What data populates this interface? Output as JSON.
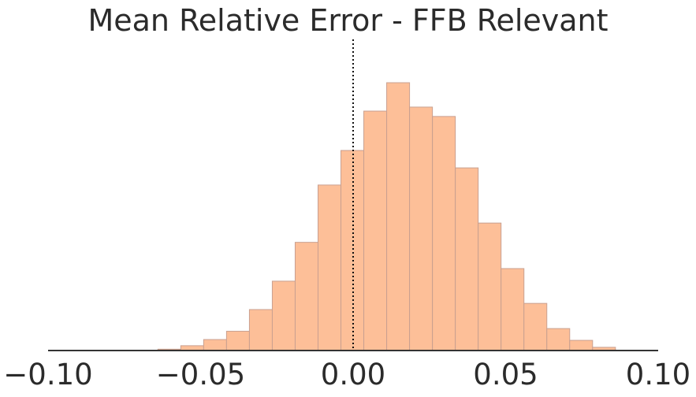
{
  "chart_data": {
    "type": "bar",
    "title": "Mean Relative Error - FFB Relevant",
    "xlabel": "",
    "ylabel": "",
    "xlim": [
      -0.1,
      0.1
    ],
    "ylim": [
      0,
      1
    ],
    "grid": false,
    "y_axis_visible": false,
    "bar_color": "#fdbf98",
    "bar_edge_color": "#c9a090",
    "reference_line": {
      "x": 0.0,
      "style": "dotted",
      "color": "#111111"
    },
    "x_ticks": [
      {
        "value": -0.1,
        "label": "−0.10"
      },
      {
        "value": -0.05,
        "label": "−0.05"
      },
      {
        "value": 0.0,
        "label": "0.00"
      },
      {
        "value": 0.05,
        "label": "0.05"
      },
      {
        "value": 0.1,
        "label": "0.10"
      }
    ],
    "bins": [
      {
        "x0": -0.0715,
        "x1": -0.064,
        "value": 0.001
      },
      {
        "x0": -0.064,
        "x1": -0.0565,
        "value": 0.005
      },
      {
        "x0": -0.0565,
        "x1": -0.049,
        "value": 0.018
      },
      {
        "x0": -0.049,
        "x1": -0.0415,
        "value": 0.041
      },
      {
        "x0": -0.0415,
        "x1": -0.034,
        "value": 0.072
      },
      {
        "x0": -0.034,
        "x1": -0.0265,
        "value": 0.153
      },
      {
        "x0": -0.0265,
        "x1": -0.019,
        "value": 0.259
      },
      {
        "x0": -0.019,
        "x1": -0.0115,
        "value": 0.404
      },
      {
        "x0": -0.0115,
        "x1": -0.004,
        "value": 0.618
      },
      {
        "x0": -0.004,
        "x1": 0.0035,
        "value": 0.747
      },
      {
        "x0": 0.0035,
        "x1": 0.011,
        "value": 0.894
      },
      {
        "x0": 0.011,
        "x1": 0.0185,
        "value": 1.0
      },
      {
        "x0": 0.0185,
        "x1": 0.026,
        "value": 0.909
      },
      {
        "x0": 0.026,
        "x1": 0.0335,
        "value": 0.874
      },
      {
        "x0": 0.0335,
        "x1": 0.041,
        "value": 0.682
      },
      {
        "x0": 0.041,
        "x1": 0.0485,
        "value": 0.476
      },
      {
        "x0": 0.0485,
        "x1": 0.056,
        "value": 0.306
      },
      {
        "x0": 0.056,
        "x1": 0.0635,
        "value": 0.176
      },
      {
        "x0": 0.0635,
        "x1": 0.071,
        "value": 0.082
      },
      {
        "x0": 0.071,
        "x1": 0.0785,
        "value": 0.038
      },
      {
        "x0": 0.0785,
        "x1": 0.086,
        "value": 0.012
      }
    ]
  }
}
